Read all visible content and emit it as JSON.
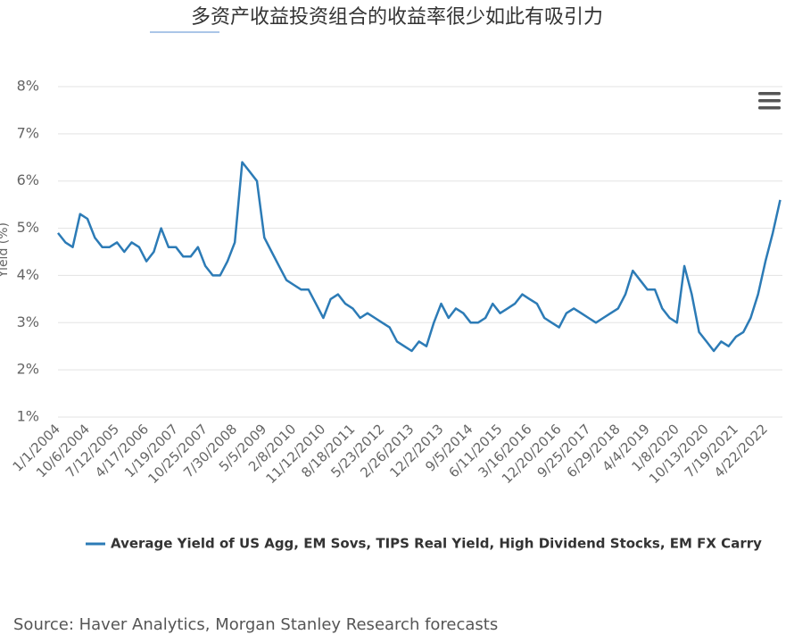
{
  "chart_data": {
    "type": "line",
    "title": "多资产收益投资组合的收益率很少如此有吸引力",
    "ylabel": "Yield (%)",
    "source": "Source: Haver Analytics, Morgan Stanley Research forecasts",
    "categories": [
      "1/1/2004",
      null,
      null,
      null,
      "10/6/2004",
      null,
      null,
      null,
      "7/12/2005",
      null,
      null,
      null,
      "4/17/2006",
      null,
      null,
      null,
      "1/19/2007",
      null,
      null,
      null,
      "10/25/2007",
      null,
      null,
      null,
      "7/30/2008",
      null,
      null,
      null,
      "5/5/2009",
      null,
      null,
      null,
      "2/8/2010",
      null,
      null,
      null,
      "11/12/2010",
      null,
      null,
      null,
      "8/18/2011",
      null,
      null,
      null,
      "5/23/2012",
      null,
      null,
      null,
      "2/26/2013",
      null,
      null,
      null,
      "12/2/2013",
      null,
      null,
      null,
      "9/5/2014",
      null,
      null,
      null,
      "6/11/2015",
      null,
      null,
      null,
      "3/16/2016",
      null,
      null,
      null,
      "12/20/2016",
      null,
      null,
      null,
      "9/25/2017",
      null,
      null,
      null,
      "6/29/2018",
      null,
      null,
      null,
      "4/4/2019",
      null,
      null,
      null,
      "1/8/2020",
      null,
      null,
      null,
      "10/13/2020",
      null,
      null,
      null,
      "7/19/2021",
      null,
      null,
      null,
      "4/22/2022",
      null,
      null
    ],
    "series": [
      {
        "name": "Average Yield of US Agg, EM Sovs, TIPS Real Yield, High Dividend Stocks, EM FX Carry",
        "color": "#2c7bb6",
        "values": [
          4.9,
          4.7,
          4.6,
          5.3,
          5.2,
          4.8,
          4.6,
          4.6,
          4.7,
          4.5,
          4.7,
          4.6,
          4.3,
          4.5,
          5.0,
          4.6,
          4.6,
          4.4,
          4.4,
          4.6,
          4.2,
          4.0,
          4.0,
          4.3,
          4.7,
          6.4,
          6.2,
          6.0,
          4.8,
          4.5,
          4.2,
          3.9,
          3.8,
          3.7,
          3.7,
          3.4,
          3.1,
          3.5,
          3.6,
          3.4,
          3.3,
          3.1,
          3.2,
          3.1,
          3.0,
          2.9,
          2.6,
          2.5,
          2.4,
          2.6,
          2.5,
          3.0,
          3.4,
          3.1,
          3.3,
          3.2,
          3.0,
          3.0,
          3.1,
          3.4,
          3.2,
          3.3,
          3.4,
          3.6,
          3.5,
          3.4,
          3.1,
          3.0,
          2.9,
          3.2,
          3.3,
          3.2,
          3.1,
          3.0,
          3.1,
          3.2,
          3.3,
          3.6,
          4.1,
          3.9,
          3.7,
          3.7,
          3.3,
          3.1,
          3.0,
          4.2,
          3.6,
          2.8,
          2.6,
          2.4,
          2.6,
          2.5,
          2.7,
          2.8,
          3.1,
          3.6,
          4.3,
          4.9,
          5.6
        ]
      }
    ],
    "ylim": [
      1,
      8
    ],
    "yticks": [
      {
        "value": 1,
        "label": "1%"
      },
      {
        "value": 2,
        "label": "2%"
      },
      {
        "value": 3,
        "label": "3%"
      },
      {
        "value": 4,
        "label": "4%"
      },
      {
        "value": 5,
        "label": "5%"
      },
      {
        "value": 6,
        "label": "6%"
      },
      {
        "value": 7,
        "label": "7%"
      },
      {
        "value": 8,
        "label": "8%"
      }
    ],
    "grid": true
  }
}
